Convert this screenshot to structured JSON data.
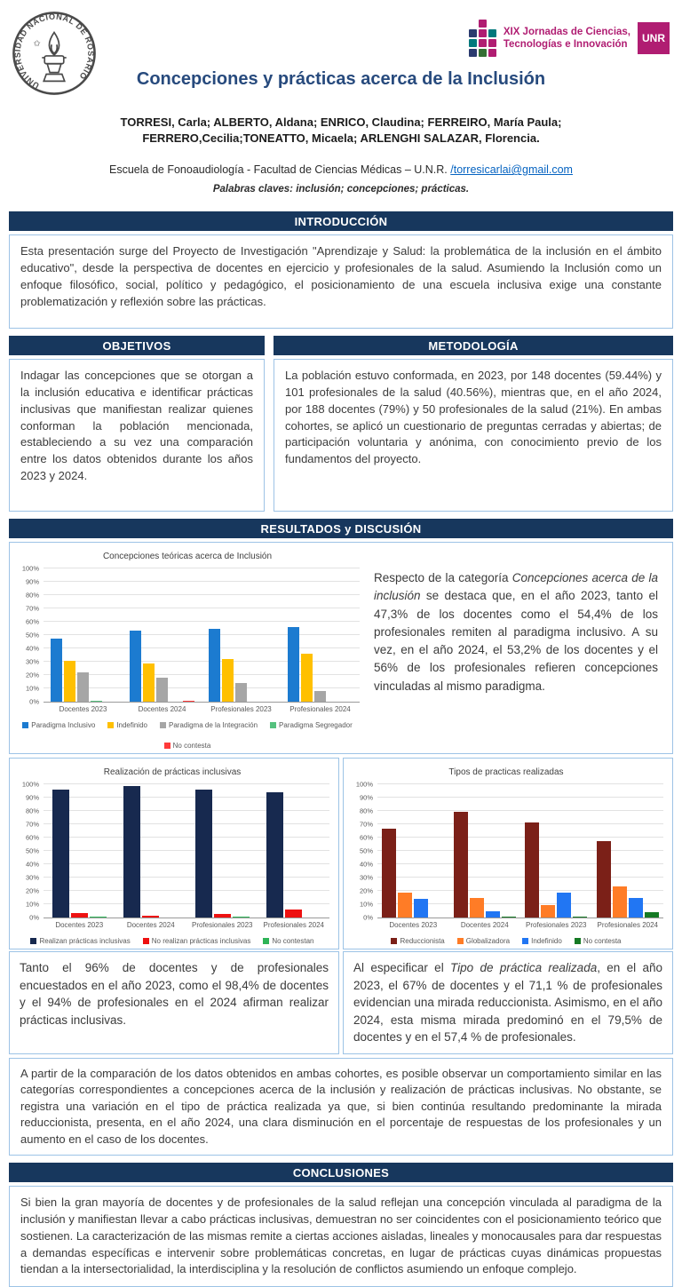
{
  "header": {
    "seal_label": "Universidad Nacional de Rosario",
    "seal_ring_text": "UNIVERSIDAD NACIONAL DE ROSARIO",
    "jornadas_line1": "XIX Jornadas de Ciencias,",
    "jornadas_line2": "Tecnologías e Innovación",
    "unr_badge": "UNR",
    "title": "Concepciones y prácticas acerca de la Inclusión",
    "authors": "TORRESI, Carla; ALBERTO, Aldana; ENRICO, Claudina; FERREIRO, María Paula; FERRERO,Cecilia;TONEATTO, Micaela; ARLENGHI SALAZAR, Florencia.",
    "affiliation_prefix": "Escuela de Fonoaudiología - Facultad de Ciencias Médicas – U.N.R. ",
    "email_link": "/torresicarlai@gmail.com",
    "keywords": "Palabras claves: inclusión; concepciones; prácticas."
  },
  "colors": {
    "section_bar": "#17375d",
    "title_blue": "#274a7d",
    "box_border": "#9dc3e6",
    "link_blue": "#0563c1",
    "brand_magenta": "#b01d72",
    "brand_teal": "#00787c",
    "brand_navy": "#2a3a6e",
    "brand_green": "#356e34"
  },
  "sections": {
    "introduccion": {
      "heading": "INTRODUCCIÓN",
      "body": "Esta presentación surge del Proyecto de Investigación \"Aprendizaje y Salud: la problemática de la inclusión en el ámbito educativo\", desde la perspectiva de docentes en ejercicio y profesionales de la salud. Asumiendo la Inclusión como un enfoque filosófico, social, político y pedagógico, el posicionamiento de una escuela inclusiva exige una constante problematización y reflexión sobre las prácticas."
    },
    "objetivos": {
      "heading": "OBJETIVOS",
      "body": "Indagar las concepciones que se otorgan a la inclusión educativa e identificar prácticas inclusivas que manifiestan realizar quienes conforman la población mencionada, estableciendo a su vez una comparación entre los datos obtenidos durante los años 2023 y 2024."
    },
    "metodologia": {
      "heading": "METODOLOGÍA",
      "body": "La población estuvo conformada, en 2023, por 148 docentes (59.44%) y 101 profesionales de la salud (40.56%), mientras que, en el año 2024, por 188 docentes (79%) y 50 profesionales de la salud (21%). En ambas cohortes, se aplicó un cuestionario de preguntas cerradas y abiertas; de participación voluntaria y anónima, con conocimiento previo de los fundamentos del proyecto."
    },
    "resultados": {
      "heading": "RESULTADOS y DISCUSIÓN",
      "text1_prefix": "Respecto de la categoría ",
      "text1_italic": "Concepciones acerca de la inclusión",
      "text1_rest": " se destaca que, en el año 2023, tanto el 47,3% de los docentes como el 54,4% de los profesionales remiten al paradigma inclusivo. A su vez, en el año 2024, el 53,2% de los docentes y el 56% de los profesionales refieren concepciones vinculadas al mismo paradigma.",
      "text2": "Tanto el 96% de docentes y de profesionales encuestados en el año 2023, como el 98,4% de docentes y el 94% de profesionales en el 2024 afirman realizar prácticas inclusivas.",
      "text3_prefix": "Al especificar el ",
      "text3_italic": "Tipo de práctica realizada",
      "text3_rest": ", en el año 2023, el 67% de docentes y el 71,1 % de profesionales evidencian una mirada reduccionista. Asimismo, en el año 2024, esta misma mirada predominó en el 79,5% de docentes y en el 57,4 % de profesionales.",
      "comparison": "A partir de la comparación de los datos obtenidos en ambas cohortes, es posible observar un comportamiento similar en las categorías correspondientes a concepciones acerca de la inclusión y realización de prácticas inclusivas. No obstante, se registra una variación en el tipo de práctica realizada ya que, si bien continúa resultando predominante la mirada reduccionista, presenta, en el año 2024, una clara disminución en el porcentaje de respuestas de los profesionales y un aumento en el caso de los docentes."
    },
    "conclusiones": {
      "heading": "CONCLUSIONES",
      "body": "Si bien la gran mayoría de docentes y de profesionales de la salud reflejan una concepción vinculada al paradigma de la inclusión y manifiestan llevar a cabo prácticas inclusivas, demuestran no ser coincidentes con el posicionamiento teórico que sostienen. La caracterización de las mismas remite a ciertas acciones aisladas, lineales y monocausales para dar respuestas a demandas específicas e intervenir sobre problemáticas concretas, en lugar de prácticas cuyas dinámicas propuestas tiendan a la intersectorialidad, la interdisciplina y la resolución de conflictos asumiendo un enfoque complejo."
    }
  },
  "chart_data": [
    {
      "type": "bar",
      "title": "Concepciones teóricas acerca de Inclusión",
      "categories": [
        "Docentes 2023",
        "Docentes 2024",
        "Profesionales 2023",
        "Profesionales 2024"
      ],
      "series": [
        {
          "name": "Paradigma Inclusivo",
          "color": "#1c7bd0",
          "values": [
            47.3,
            53.2,
            54.4,
            56
          ]
        },
        {
          "name": "Indefinido",
          "color": "#ffc000",
          "values": [
            31,
            28.5,
            32,
            36
          ]
        },
        {
          "name": "Paradigma de la Integración",
          "color": "#a6a6a6",
          "values": [
            22,
            18,
            14,
            8
          ]
        },
        {
          "name": "Paradigma Segregador",
          "color": "#55c17e",
          "values": [
            1,
            0,
            0,
            0
          ]
        },
        {
          "name": "No contesta",
          "color": "#ff3a3a",
          "values": [
            0,
            0.7,
            0,
            0
          ]
        }
      ],
      "xlabel": "",
      "ylabel": "",
      "ylim": [
        0,
        100
      ],
      "tick_step": 10,
      "grid": true,
      "legend_position": "bottom"
    },
    {
      "type": "bar",
      "title": "Realización de prácticas inclusivas",
      "categories": [
        "Docentes 2023",
        "Docentes 2024",
        "Profesionales 2023",
        "Profesionales 2024"
      ],
      "series": [
        {
          "name": "Realizan prácticas inclusivas",
          "color": "#17294f",
          "values": [
            96,
            98.4,
            96,
            94
          ]
        },
        {
          "name": "No realizan prácticas inclusivas",
          "color": "#ee1111",
          "values": [
            3.5,
            1.6,
            3,
            6
          ]
        },
        {
          "name": "No contestan",
          "color": "#2eb457",
          "values": [
            1,
            0,
            1,
            0
          ]
        }
      ],
      "xlabel": "",
      "ylabel": "",
      "ylim": [
        0,
        100
      ],
      "tick_step": 10,
      "grid": true,
      "legend_position": "bottom"
    },
    {
      "type": "bar",
      "title": "Tipos de practicas realizadas",
      "categories": [
        "Docentes 2023",
        "Docentes 2024",
        "Profesionales 2023",
        "Profesionales 2024"
      ],
      "series": [
        {
          "name": "Reduccionista",
          "color": "#7b2018",
          "values": [
            67,
            79.5,
            71.1,
            57.4
          ]
        },
        {
          "name": "Globalizadora",
          "color": "#ff7c26",
          "values": [
            19,
            15,
            9.5,
            23.5
          ]
        },
        {
          "name": "Indefinido",
          "color": "#2176f3",
          "values": [
            14,
            4.5,
            18.5,
            15
          ]
        },
        {
          "name": "No contesta",
          "color": "#157a24",
          "values": [
            0,
            1,
            1,
            4
          ]
        }
      ],
      "xlabel": "",
      "ylabel": "",
      "ylim": [
        0,
        100
      ],
      "tick_step": 10,
      "grid": true,
      "legend_position": "bottom"
    }
  ]
}
